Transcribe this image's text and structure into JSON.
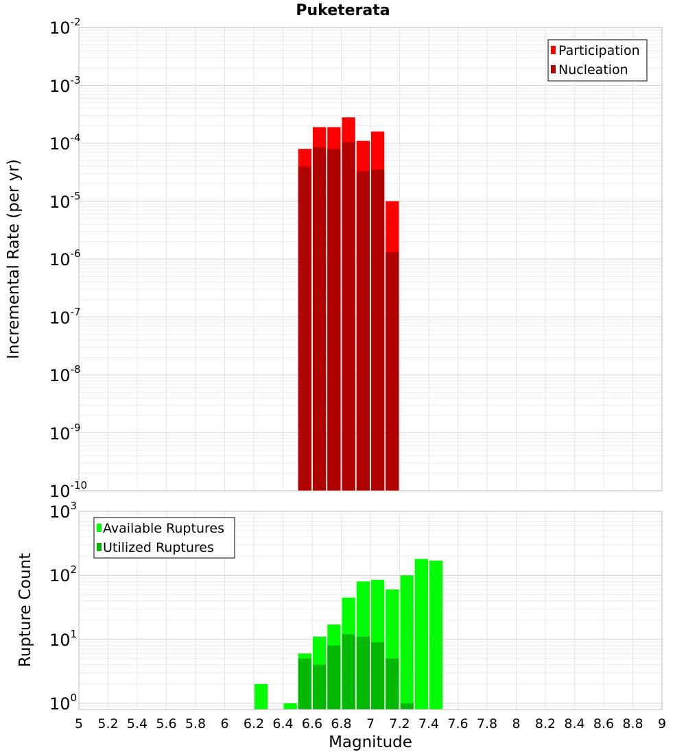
{
  "chart_data": [
    {
      "type": "bar",
      "title": "Puketerata",
      "xlabel": "",
      "ylabel": "Incremental Rate (per yr)",
      "yscale": "log",
      "ylim": [
        1e-10,
        0.01
      ],
      "xlim": [
        5,
        9
      ],
      "y_tick_exponents": [
        "-2",
        "-3",
        "-4",
        "-5",
        "-6",
        "-7",
        "-8",
        "-9",
        "-10"
      ],
      "bin_width": 0.1,
      "grid": true,
      "legend_position": "top-right",
      "x": [
        6.55,
        6.65,
        6.75,
        6.85,
        6.95,
        7.05,
        7.15
      ],
      "series": [
        {
          "name": "Participation",
          "color": "#ff0000",
          "values": [
            8e-05,
            0.00019,
            0.00019,
            0.00028,
            0.00011,
            0.00016,
            1e-05
          ]
        },
        {
          "name": "Nucleation",
          "color": "#b00000",
          "values": [
            4e-05,
            8.5e-05,
            8e-05,
            0.000105,
            3.3e-05,
            3.5e-05,
            1.3e-06
          ]
        }
      ]
    },
    {
      "type": "bar",
      "title": "",
      "xlabel": "Magnitude",
      "ylabel": "Rupture Count",
      "yscale": "log",
      "ylim": [
        0.8,
        1000
      ],
      "xlim": [
        5,
        9
      ],
      "x_ticks": [
        "5",
        "5.2",
        "5.4",
        "5.6",
        "5.8",
        "6",
        "6.2",
        "6.4",
        "6.6",
        "6.8",
        "7",
        "7.2",
        "7.4",
        "7.6",
        "7.8",
        "8",
        "8.2",
        "8.4",
        "8.6",
        "8.8",
        "9"
      ],
      "y_tick_exponents": [
        "3",
        "2",
        "1",
        "0"
      ],
      "bin_width": 0.1,
      "grid": true,
      "legend_position": "top-left",
      "x": [
        6.25,
        6.45,
        6.55,
        6.65,
        6.75,
        6.85,
        6.95,
        7.05,
        7.15,
        7.25,
        7.35,
        7.45
      ],
      "series": [
        {
          "name": "Available Ruptures",
          "color": "#00ff00",
          "values": [
            2,
            1,
            6,
            11,
            17,
            45,
            80,
            85,
            60,
            100,
            180,
            170
          ]
        },
        {
          "name": "Utilized Ruptures",
          "color": "#00b800",
          "values": [
            0,
            0,
            5,
            4,
            8,
            12,
            11,
            9,
            5,
            1,
            0,
            0
          ]
        }
      ]
    }
  ]
}
